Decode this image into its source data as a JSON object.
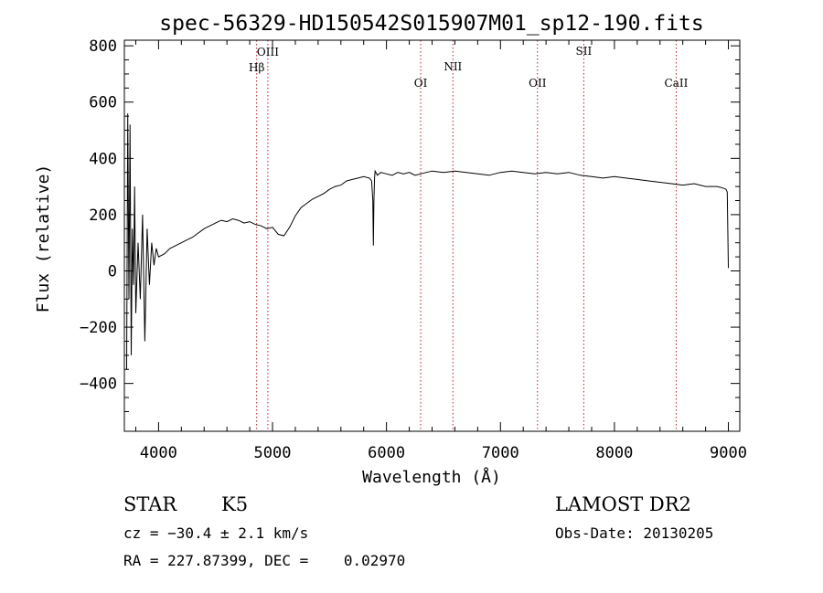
{
  "chart_data": {
    "type": "line",
    "title": "spec-56329-HD150542S015907M01_sp12-190.fits",
    "xlabel": "Wavelength (Å)",
    "ylabel": "Flux (relative)",
    "xlim": [
      3700,
      9100
    ],
    "ylim": [
      -570,
      820
    ],
    "xticks": [
      4000,
      5000,
      6000,
      7000,
      8000,
      9000
    ],
    "yticks": [
      -400,
      -200,
      0,
      200,
      400,
      600,
      800
    ],
    "xtick_labels": [
      "4000",
      "5000",
      "6000",
      "7000",
      "8000",
      "9000"
    ],
    "ytick_labels": [
      "−400",
      "−200",
      "0",
      "200",
      "400",
      "600",
      "800"
    ],
    "grid": false,
    "line_color": "#000000",
    "marker_line_color": "#b22222",
    "spectral_lines": [
      {
        "label": "Hβ",
        "wavelength": 4861
      },
      {
        "label": "OIII",
        "wavelength": 4959
      },
      {
        "label": "OI",
        "wavelength": 6300
      },
      {
        "label": "NII",
        "wavelength": 6583
      },
      {
        "label": "OII",
        "wavelength": 7325
      },
      {
        "label": "SII",
        "wavelength": 7731
      },
      {
        "label": "CaII",
        "wavelength": 8542
      }
    ],
    "series": [
      {
        "x": [
          3720,
          3730,
          3740,
          3750,
          3760,
          3770,
          3780,
          3790,
          3800,
          3820,
          3840,
          3860,
          3880,
          3900,
          3920,
          3940,
          3960,
          3980,
          4000,
          4050,
          4100,
          4150,
          4200,
          4250,
          4300,
          4350,
          4400,
          4450,
          4500,
          4550,
          4600,
          4650,
          4700,
          4750,
          4800,
          4850,
          4900,
          4950,
          5000,
          5050,
          5100,
          5150,
          5200,
          5250,
          5300,
          5350,
          5400,
          5450,
          5500,
          5550,
          5600,
          5650,
          5700,
          5750,
          5800,
          5850,
          5870,
          5880,
          5885,
          5890,
          5895,
          5900,
          5920,
          5950,
          6000,
          6050,
          6100,
          6150,
          6200,
          6250,
          6300,
          6350,
          6400,
          6500,
          6600,
          6700,
          6800,
          6900,
          7000,
          7100,
          7200,
          7300,
          7400,
          7500,
          7600,
          7700,
          7800,
          7900,
          8000,
          8100,
          8200,
          8300,
          8400,
          8500,
          8600,
          8700,
          8800,
          8900,
          8950,
          8980,
          8990,
          9000
        ],
        "y": [
          -350,
          560,
          -100,
          520,
          -300,
          150,
          -50,
          300,
          -150,
          100,
          -100,
          200,
          -250,
          150,
          -50,
          100,
          20,
          80,
          50,
          60,
          80,
          90,
          100,
          110,
          120,
          135,
          150,
          160,
          170,
          180,
          175,
          185,
          180,
          170,
          175,
          165,
          160,
          150,
          155,
          130,
          125,
          155,
          195,
          225,
          240,
          255,
          265,
          275,
          290,
          300,
          305,
          320,
          325,
          330,
          335,
          330,
          320,
          250,
          90,
          250,
          330,
          355,
          340,
          350,
          345,
          340,
          350,
          345,
          350,
          340,
          345,
          350,
          355,
          350,
          355,
          350,
          345,
          340,
          350,
          355,
          350,
          345,
          350,
          345,
          350,
          340,
          335,
          330,
          335,
          330,
          325,
          320,
          315,
          310,
          305,
          310,
          300,
          300,
          295,
          290,
          280,
          10
        ]
      }
    ]
  },
  "info": {
    "object_type": "STAR",
    "subclass": "K5",
    "survey": "LAMOST DR2",
    "cz": "cz = −30.4 ± 2.1 km/s",
    "obs_date": "Obs-Date: 20130205",
    "coords": "RA = 227.87399, DEC =    0.02970"
  }
}
